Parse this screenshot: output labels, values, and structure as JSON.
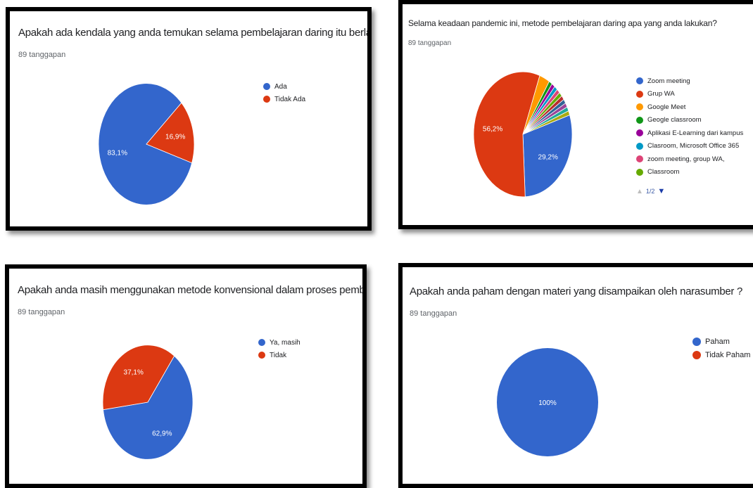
{
  "chart_data": [
    {
      "type": "pie",
      "title": "Apakah ada kendala yang anda temukan selama pembelajaran daring itu berlangsung?",
      "subtitle": "89 tanggapan",
      "legend": "right",
      "series": [
        {
          "name": "Ada",
          "value": 83.1,
          "label": "83,1%",
          "color": "#3366cc"
        },
        {
          "name": "Tidak Ada",
          "value": 16.9,
          "label": "16,9%",
          "color": "#dc3912"
        }
      ]
    },
    {
      "type": "pie",
      "title": "Selama keadaan pandemic ini, metode pembelajaran daring apa yang anda lakukan?",
      "subtitle": "89 tanggapan",
      "legend": "right",
      "series": [
        {
          "name": "Zoom meeting",
          "value": 29.2,
          "label": "29,2%",
          "color": "#3366cc"
        },
        {
          "name": "Grup WA",
          "value": 56.2,
          "label": "56,2%",
          "color": "#dc3912"
        },
        {
          "name": "Google Meet",
          "value": 3.4,
          "label": "",
          "color": "#ff9900"
        },
        {
          "name": "Geogle classroom",
          "value": 1.1,
          "label": "",
          "color": "#109618"
        },
        {
          "name": "Aplikasi E-Learning dari kampus",
          "value": 1.1,
          "label": "",
          "color": "#990099"
        },
        {
          "name": "Clasroom, Microsoft Office 365",
          "value": 1.1,
          "label": "",
          "color": "#0099c6"
        },
        {
          "name": "zoom meeting, group WA,",
          "value": 1.1,
          "label": "",
          "color": "#dd4477"
        },
        {
          "name": "Classroom",
          "value": 1.1,
          "label": "",
          "color": "#66aa00"
        },
        {
          "name": "",
          "value": 1.1,
          "label": "",
          "color": "#b82e2e"
        },
        {
          "name": "",
          "value": 1.1,
          "label": "",
          "color": "#316395"
        },
        {
          "name": "",
          "value": 1.1,
          "label": "",
          "color": "#994499"
        },
        {
          "name": "",
          "value": 1.1,
          "label": "",
          "color": "#22aa99"
        },
        {
          "name": "",
          "value": 1.1,
          "label": "",
          "color": "#aaaa11"
        }
      ],
      "legend_pager": {
        "page": "1/2",
        "up_icon": "up-triangle-icon",
        "down_icon": "down-triangle-icon"
      }
    },
    {
      "type": "pie",
      "title": "Apakah anda masih menggunakan metode konvensional dalam proses pembelajaran anda?",
      "subtitle": "89 tanggapan",
      "legend": "right",
      "series": [
        {
          "name": "Ya, masih",
          "value": 62.9,
          "label": "62,9%",
          "color": "#3366cc"
        },
        {
          "name": "Tidak",
          "value": 37.1,
          "label": "37,1%",
          "color": "#dc3912"
        }
      ]
    },
    {
      "type": "pie",
      "title": "Apakah anda paham dengan materi yang disampaikan oleh narasumber ?",
      "subtitle": "89 tanggapan",
      "legend": "right",
      "series": [
        {
          "name": "Paham",
          "value": 100,
          "label": "100%",
          "color": "#3366cc"
        },
        {
          "name": "Tidak Paham",
          "value": 0,
          "label": "",
          "color": "#dc3912"
        }
      ]
    }
  ]
}
